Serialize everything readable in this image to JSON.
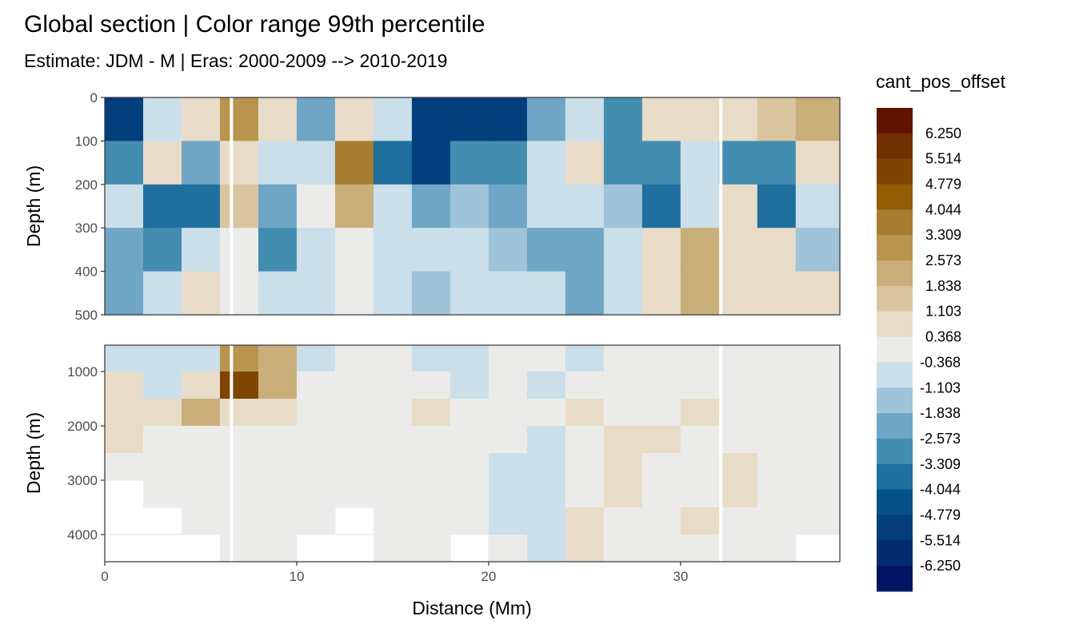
{
  "chart_data": {
    "type": "heatmap",
    "title": "Global section | Color range 99th percentile",
    "subtitle": "Estimate: JDM - M | Eras: 2000-2009 --> 2010-2019",
    "xlabel": "Distance (Mm)",
    "ylabel": "Depth (m)",
    "xlim": [
      0,
      38.3
    ],
    "xticks": [
      "0",
      "10",
      "20",
      "30"
    ],
    "x_bin_width": 2,
    "gaps_x": [
      6.6,
      32.1
    ],
    "legend": {
      "title": "cant_pos_offset",
      "position": "right",
      "labels": [
        "6.250",
        "5.514",
        "4.779",
        "4.044",
        "3.309",
        "2.573",
        "1.838",
        "1.103",
        "0.368",
        "-0.368",
        "-1.103",
        "-1.838",
        "-2.573",
        "-3.309",
        "-4.044",
        "-4.779",
        "-5.514",
        "-6.250"
      ],
      "breaks": [
        -6.25,
        -5.514,
        -4.779,
        -4.044,
        -3.309,
        -2.573,
        -1.838,
        -1.103,
        -0.368,
        0.368,
        1.103,
        1.838,
        2.573,
        3.309,
        4.044,
        4.779,
        5.514,
        6.25
      ],
      "colors": [
        "#001461",
        "#022b6d",
        "#013e7b",
        "#075189",
        "#1f6f9f",
        "#438db1",
        "#6fa6c6",
        "#9fc3d8",
        "#cadfea",
        "#ebecea",
        "#e8dcc8",
        "#d9c6a0",
        "#c9ae7a",
        "#b8944f",
        "#a67c2e",
        "#915e05",
        "#7f4500",
        "#722f00",
        "#601400"
      ]
    },
    "panels": [
      {
        "name": "upper",
        "ylim": [
          0,
          500
        ],
        "yticks": [
          "0",
          "100",
          "200",
          "300",
          "400",
          "500"
        ],
        "ytick_values": [
          0,
          100,
          200,
          300,
          400,
          500
        ],
        "depth_edges": [
          0,
          100,
          200,
          300,
          400,
          500
        ],
        "values": [
          [
            -5,
            -3,
            -1,
            -2,
            -2
          ],
          [
            -1,
            1,
            -4,
            -3,
            -1
          ],
          [
            1,
            -2,
            -4,
            -1,
            1
          ],
          [
            3,
            1,
            1.5,
            0,
            0
          ],
          [
            0.5,
            -1,
            -2,
            -3,
            -1
          ],
          [
            -2,
            -1,
            0,
            -0.5,
            -1
          ],
          [
            0.5,
            4,
            2,
            0,
            0
          ],
          [
            -1,
            -4,
            -1,
            -1,
            -1
          ],
          [
            -5,
            -5,
            -2,
            -1,
            -1.5
          ],
          [
            -5,
            -3,
            -1.5,
            -1,
            -1
          ],
          [
            -5,
            -3,
            -2,
            -1.5,
            -1
          ],
          [
            -2,
            -1,
            -0.5,
            -2,
            -1
          ],
          [
            -1,
            1,
            -1,
            -2,
            -2
          ],
          [
            -3,
            -3,
            -1.5,
            -1,
            -1
          ],
          [
            0.5,
            -3,
            -4,
            1,
            1
          ],
          [
            1,
            -1,
            -1,
            2,
            2
          ],
          [
            1,
            -3,
            1,
            1,
            0.5
          ],
          [
            1.5,
            -3,
            -4,
            0.5,
            1
          ],
          [
            2,
            1,
            -1,
            -1.5,
            0.5
          ]
        ]
      },
      {
        "name": "lower",
        "ylim": [
          515,
          4500
        ],
        "yticks": [
          "1000",
          "2000",
          "3000",
          "4000"
        ],
        "ytick_values": [
          1000,
          2000,
          3000,
          4000
        ],
        "depth_edges": [
          515,
          1000,
          1500,
          2000,
          2500,
          3000,
          3500,
          4000,
          4500
        ],
        "values": [
          [
            -0.5,
            0.5,
            1,
            0.5,
            0,
            null,
            null,
            null
          ],
          [
            -1,
            -0.5,
            0.5,
            0,
            0,
            0,
            null,
            null
          ],
          [
            -1,
            1,
            2,
            0,
            0,
            0,
            0,
            null
          ],
          [
            3,
            5,
            1,
            0,
            0,
            0,
            0,
            0
          ],
          [
            2,
            2,
            0.5,
            0,
            0,
            0,
            0,
            0
          ],
          [
            -0.5,
            0,
            0,
            0,
            0,
            0,
            0,
            null
          ],
          [
            0,
            0,
            0,
            0,
            0,
            0,
            null,
            null
          ],
          [
            0,
            0,
            0,
            0,
            0,
            0,
            0,
            0
          ],
          [
            -0.5,
            0,
            0.5,
            0,
            0,
            0,
            0,
            0
          ],
          [
            -0.5,
            -0.5,
            0,
            0,
            0,
            0,
            0,
            null
          ],
          [
            0,
            0,
            0,
            0,
            -0.5,
            -0.5,
            -0.5,
            0
          ],
          [
            0,
            -0.5,
            0,
            -0.5,
            -0.5,
            -0.5,
            -0.5,
            -0.5
          ],
          [
            -0.5,
            0,
            0.5,
            0,
            0,
            0,
            0.5,
            0.5
          ],
          [
            0,
            0,
            0,
            0.5,
            0.5,
            0.5,
            0,
            0
          ],
          [
            0,
            0,
            0,
            0.5,
            0,
            0,
            0,
            0
          ],
          [
            0,
            0,
            0.5,
            0,
            0,
            0,
            0.5,
            0
          ],
          [
            0,
            0,
            0,
            0,
            0.5,
            0.5,
            0,
            0
          ],
          [
            0,
            0,
            0,
            0,
            0,
            0,
            0,
            0
          ],
          [
            0,
            0,
            0,
            0,
            0,
            0,
            0,
            null
          ]
        ]
      }
    ]
  }
}
